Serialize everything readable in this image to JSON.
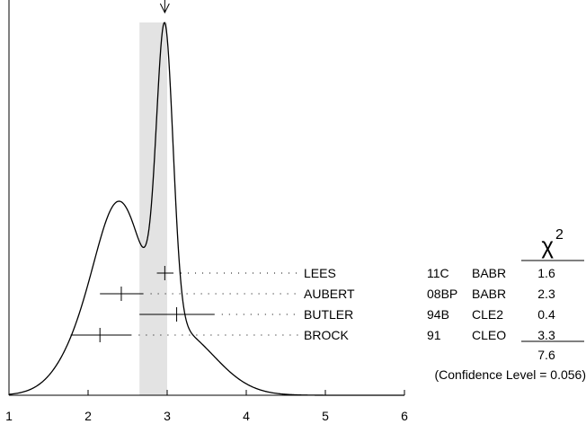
{
  "chart_data": {
    "type": "ideogram",
    "xlim": [
      1,
      6
    ],
    "x_ticks": [
      "1",
      "2",
      "3",
      "4",
      "5",
      "6"
    ],
    "grid": false,
    "band": {
      "from": 2.65,
      "to": 3.0,
      "color": "#e3e3e3"
    },
    "arrow_at": 2.97,
    "measurements": [
      {
        "name": "LEES",
        "ref": "11C",
        "exp": "BABR",
        "value": 2.97,
        "low": 2.87,
        "high": 3.08,
        "chi2": "1.6"
      },
      {
        "name": "AUBERT",
        "ref": "08BP",
        "exp": "BABR",
        "value": 2.42,
        "low": 2.15,
        "high": 2.7,
        "chi2": "2.3"
      },
      {
        "name": "BUTLER",
        "ref": "94B",
        "exp": "CLE2",
        "value": 3.12,
        "low": 2.65,
        "high": 3.6,
        "chi2": "0.4"
      },
      {
        "name": "BROCK",
        "ref": "91",
        "exp": "CLEO",
        "value": 2.15,
        "low": 1.78,
        "high": 2.55,
        "chi2": "3.3"
      }
    ],
    "chi2_header": "χ",
    "chi2_header_sup": "2",
    "chi2_total": "7.6",
    "confidence_label": "(Confidence Level = 0.056)",
    "curve_color": "#000000"
  }
}
